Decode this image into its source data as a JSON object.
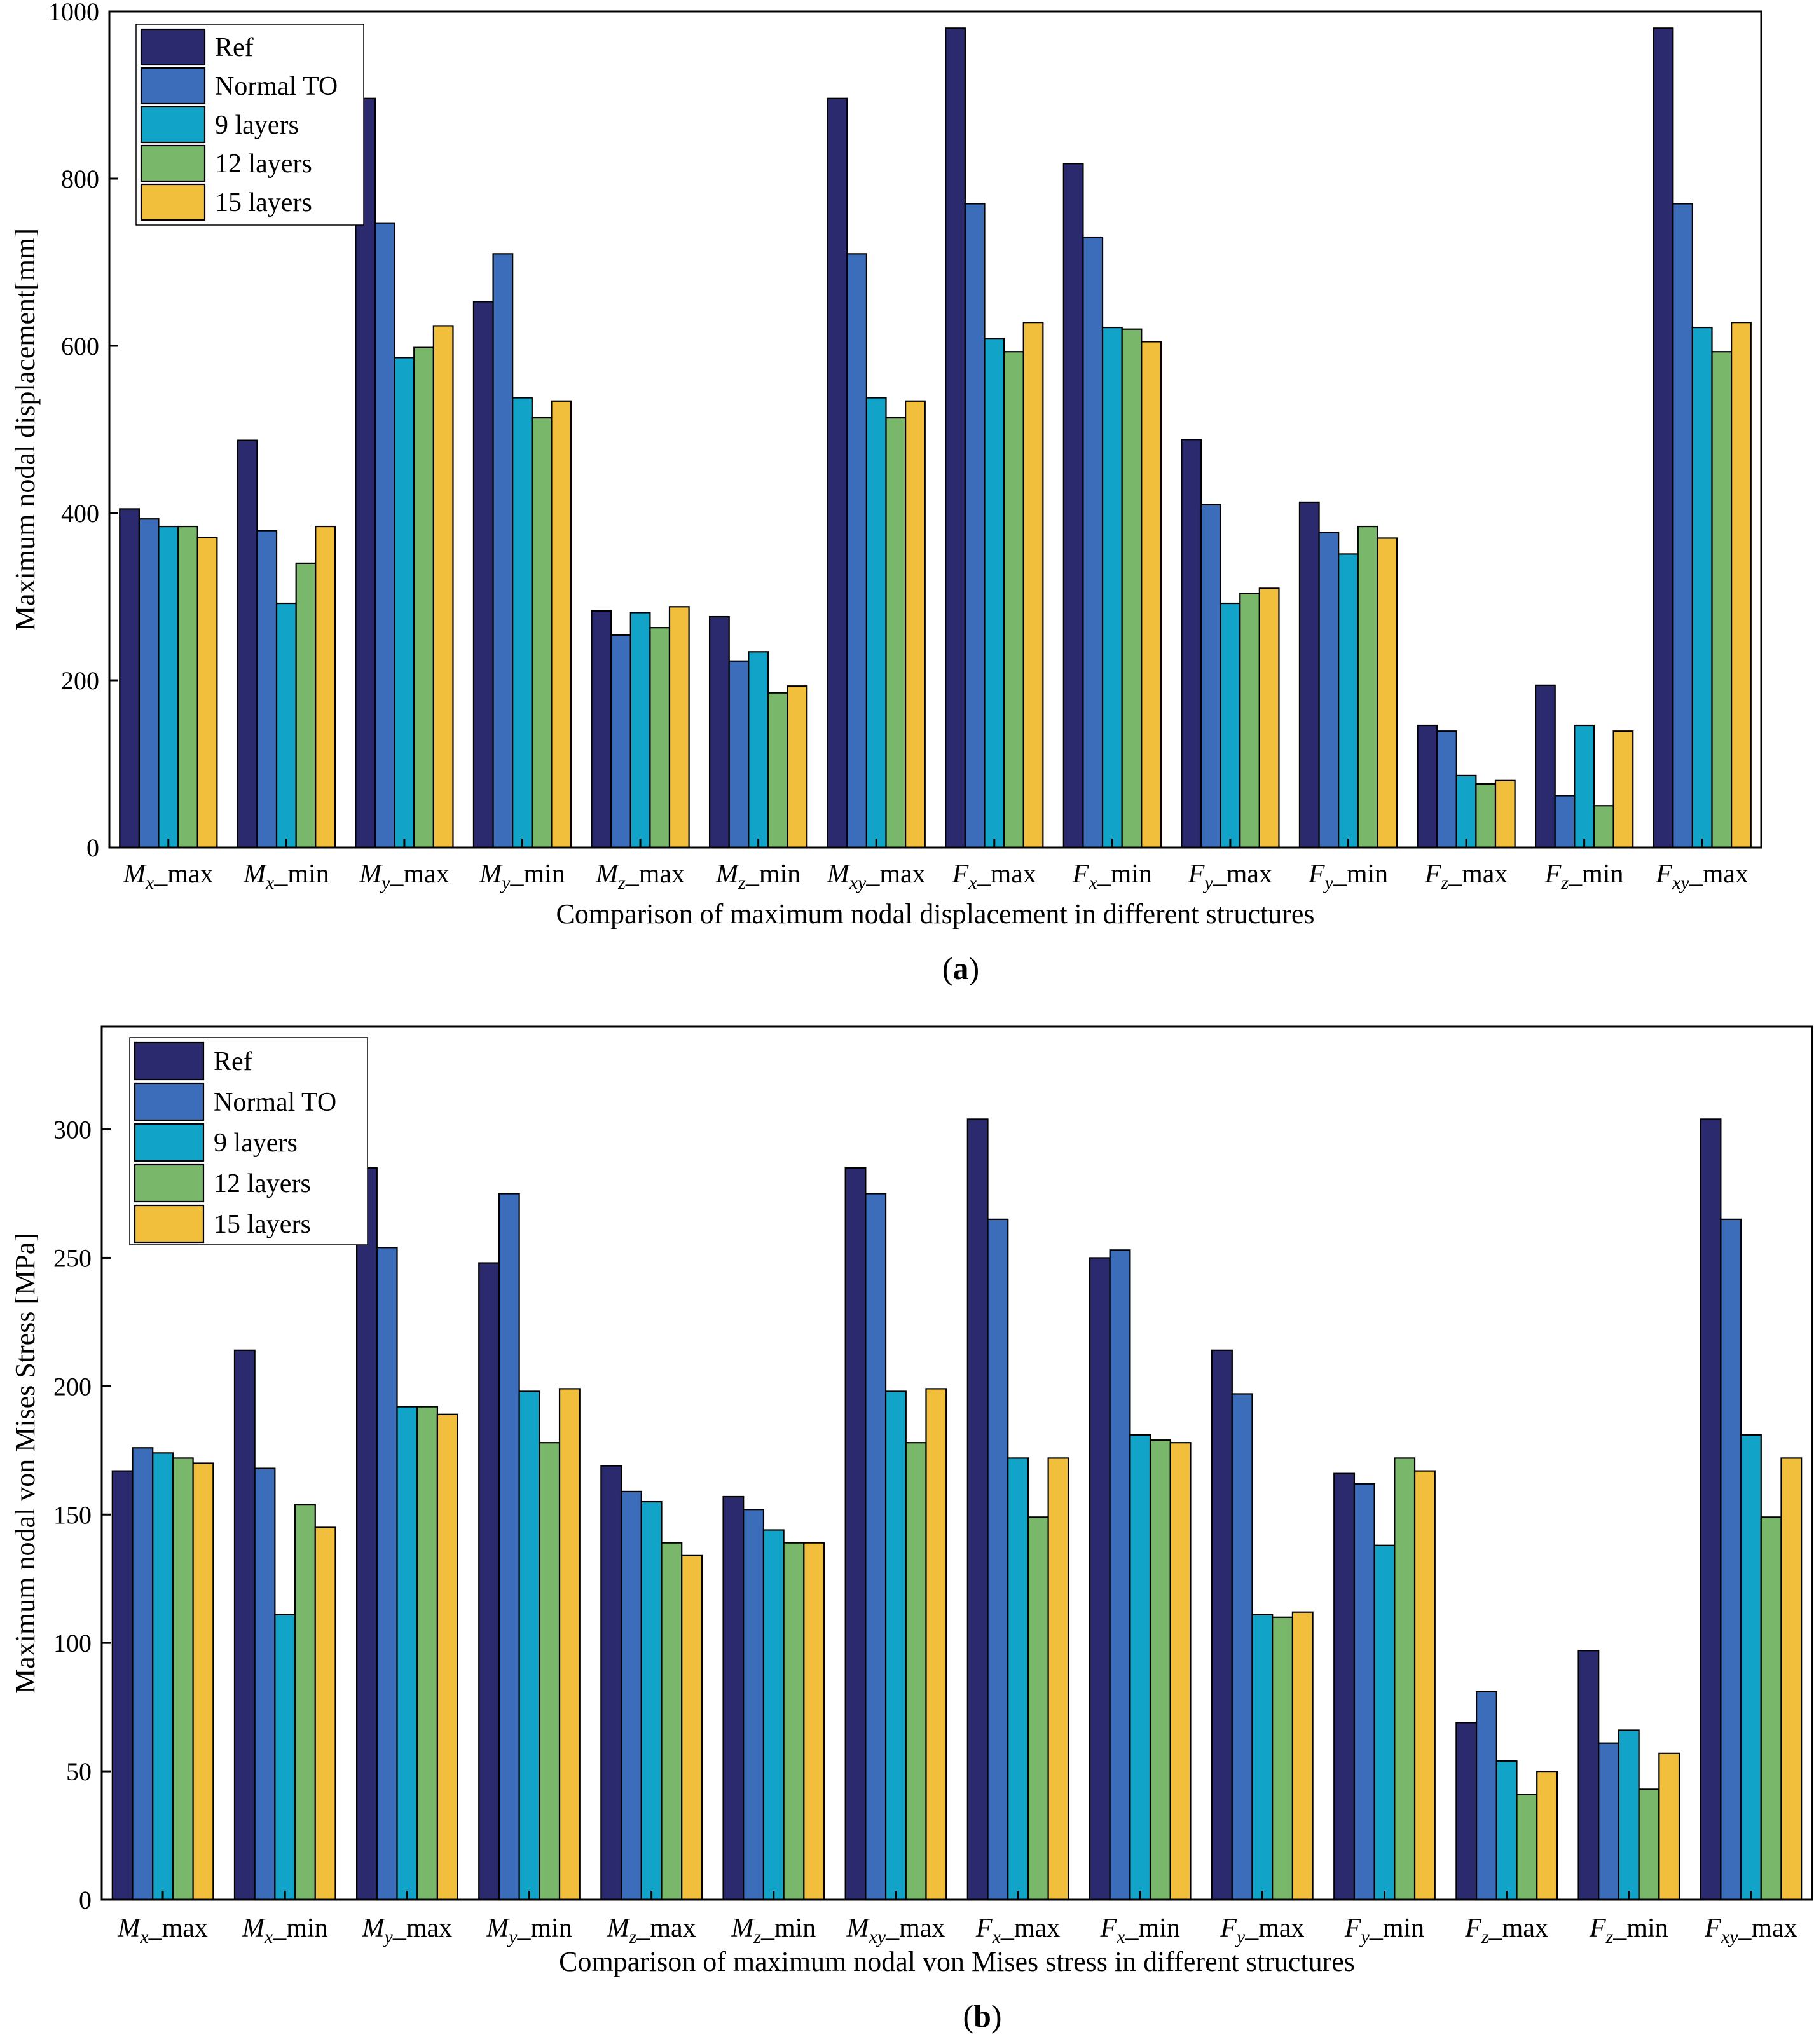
{
  "colors": {
    "ref": "#2c2a6e",
    "normal_to": "#3b6dba",
    "layers9": "#12a4c8",
    "layers12": "#79b86a",
    "layers15": "#f2bf3d"
  },
  "chart_data": [
    {
      "type": "bar",
      "panel_label": "a",
      "xlabel": "Comparison of maximum nodal displacement in different structures",
      "ylabel": "Maximum nodal displacement[mm]",
      "ylim": [
        0,
        1000
      ],
      "yticks": [
        0,
        200,
        400,
        600,
        800,
        1000
      ],
      "legend_position": "top-left",
      "grid": false,
      "categories": [
        {
          "sym": "M",
          "sub": "x",
          "suf": "_max"
        },
        {
          "sym": "M",
          "sub": "x",
          "suf": "_min"
        },
        {
          "sym": "M",
          "sub": "y",
          "suf": "_max"
        },
        {
          "sym": "M",
          "sub": "y",
          "suf": "_min"
        },
        {
          "sym": "M",
          "sub": "z",
          "suf": "_max"
        },
        {
          "sym": "M",
          "sub": "z",
          "suf": "_min"
        },
        {
          "sym": "M",
          "sub": "xy",
          "suf": "_max"
        },
        {
          "sym": "F",
          "sub": "x",
          "suf": "_max"
        },
        {
          "sym": "F",
          "sub": "x",
          "suf": "_min"
        },
        {
          "sym": "F",
          "sub": "y",
          "suf": "_max"
        },
        {
          "sym": "F",
          "sub": "y",
          "suf": "_min"
        },
        {
          "sym": "F",
          "sub": "z",
          "suf": "_max"
        },
        {
          "sym": "F",
          "sub": "z",
          "suf": "_min"
        },
        {
          "sym": "F",
          "sub": "xy",
          "suf": "_max"
        }
      ],
      "series": [
        {
          "name": "Ref",
          "color_key": "ref",
          "values": [
            405,
            487,
            896,
            653,
            283,
            276,
            896,
            980,
            818,
            488,
            413,
            146,
            194,
            980
          ]
        },
        {
          "name": "Normal TO",
          "color_key": "normal_to",
          "values": [
            393,
            379,
            747,
            710,
            254,
            223,
            710,
            770,
            730,
            410,
            377,
            139,
            62,
            770
          ]
        },
        {
          "name": "9 layers",
          "color_key": "layers9",
          "values": [
            384,
            292,
            586,
            538,
            281,
            234,
            538,
            609,
            622,
            292,
            351,
            86,
            146,
            622
          ]
        },
        {
          "name": "12 layers",
          "color_key": "layers12",
          "values": [
            384,
            340,
            598,
            514,
            263,
            185,
            514,
            593,
            620,
            304,
            384,
            76,
            50,
            593
          ]
        },
        {
          "name": "15 layers",
          "color_key": "layers15",
          "values": [
            371,
            384,
            624,
            534,
            288,
            193,
            534,
            628,
            605,
            310,
            370,
            80,
            139,
            628
          ]
        }
      ]
    },
    {
      "type": "bar",
      "panel_label": "b",
      "xlabel": "Comparison of maximum nodal von Mises stress in different structures",
      "ylabel": "Maximum nodal von Mises Stress [MPa]",
      "ylim": [
        0,
        340
      ],
      "yticks": [
        0,
        50,
        100,
        150,
        200,
        250,
        300
      ],
      "legend_position": "top-left",
      "grid": false,
      "categories": [
        {
          "sym": "M",
          "sub": "x",
          "suf": "_max"
        },
        {
          "sym": "M",
          "sub": "x",
          "suf": "_min"
        },
        {
          "sym": "M",
          "sub": "y",
          "suf": "_max"
        },
        {
          "sym": "M",
          "sub": "y",
          "suf": "_min"
        },
        {
          "sym": "M",
          "sub": "z",
          "suf": "_max"
        },
        {
          "sym": "M",
          "sub": "z",
          "suf": "_min"
        },
        {
          "sym": "M",
          "sub": "xy",
          "suf": "_max"
        },
        {
          "sym": "F",
          "sub": "x",
          "suf": "_max"
        },
        {
          "sym": "F",
          "sub": "x",
          "suf": "_min"
        },
        {
          "sym": "F",
          "sub": "y",
          "suf": "_max"
        },
        {
          "sym": "F",
          "sub": "y",
          "suf": "_min"
        },
        {
          "sym": "F",
          "sub": "z",
          "suf": "_max"
        },
        {
          "sym": "F",
          "sub": "z",
          "suf": "_min"
        },
        {
          "sym": "F",
          "sub": "xy",
          "suf": "_max"
        }
      ],
      "series": [
        {
          "name": "Ref",
          "color_key": "ref",
          "values": [
            167,
            214,
            285,
            248,
            169,
            157,
            285,
            304,
            250,
            214,
            166,
            69,
            97,
            304
          ]
        },
        {
          "name": "Normal TO",
          "color_key": "normal_to",
          "values": [
            176,
            168,
            254,
            275,
            159,
            152,
            275,
            265,
            253,
            197,
            162,
            81,
            61,
            265
          ]
        },
        {
          "name": "9 layers",
          "color_key": "layers9",
          "values": [
            174,
            111,
            192,
            198,
            155,
            144,
            198,
            172,
            181,
            111,
            138,
            54,
            66,
            181
          ]
        },
        {
          "name": "12 layers",
          "color_key": "layers12",
          "values": [
            172,
            154,
            192,
            178,
            139,
            139,
            178,
            149,
            179,
            110,
            172,
            41,
            43,
            149
          ]
        },
        {
          "name": "15 layers",
          "color_key": "layers15",
          "values": [
            170,
            145,
            189,
            199,
            134,
            139,
            199,
            172,
            178,
            112,
            167,
            50,
            57,
            172
          ]
        }
      ]
    }
  ]
}
